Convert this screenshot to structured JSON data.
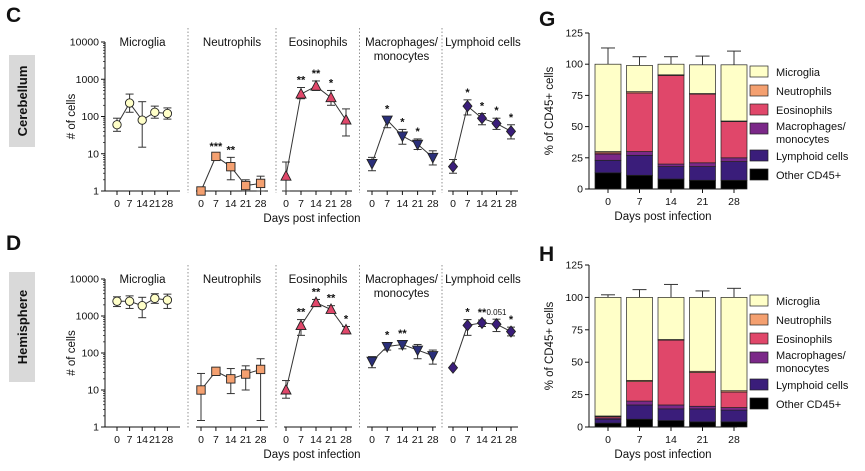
{
  "colors": {
    "microglia": "#FFFFC8",
    "neutrophils": "#F4A070",
    "eosinophils": "#E0476A",
    "macrophages": "#7B2888",
    "lymphoid": "#3A1D7A",
    "other": "#000000",
    "side_box": "#D9D9D9"
  },
  "panels": {
    "C": "C",
    "D": "D",
    "G": "G",
    "H": "H"
  },
  "side_labels": {
    "cerebellum": "Cerebellum",
    "hemisphere": "Hemisphere"
  },
  "chart_data": [
    {
      "id": "C",
      "type": "line",
      "region": "Cerebellum",
      "yscale": "log",
      "ylim": [
        1,
        10000
      ],
      "ylabel": "# of cells",
      "xlabel": "Days post infection",
      "yticks": [
        "1",
        "10",
        "100",
        "1000",
        "10000"
      ],
      "x": [
        "0",
        "7",
        "14",
        "21",
        "28"
      ],
      "groups": [
        {
          "name": "Microglia",
          "marker": "circle",
          "color": "#FFFFC8",
          "values": [
            60,
            230,
            80,
            130,
            120
          ],
          "lo": [
            40,
            130,
            15,
            90,
            85
          ],
          "hi": [
            90,
            400,
            250,
            190,
            170
          ],
          "stars": [
            "",
            "",
            "",
            "",
            ""
          ]
        },
        {
          "name": "Neutrophils",
          "marker": "square",
          "color": "#F4A070",
          "values": [
            1,
            8.5,
            4.5,
            1.4,
            1.6
          ],
          "lo": [
            1,
            7,
            2,
            1,
            1
          ],
          "hi": [
            1,
            10,
            8,
            2,
            2.5
          ],
          "stars": [
            "",
            "***",
            "**",
            "",
            ""
          ]
        },
        {
          "name": "Eosinophils",
          "marker": "triangle-up",
          "color": "#E0476A",
          "values": [
            2.5,
            400,
            650,
            320,
            80
          ],
          "lo": [
            1,
            300,
            500,
            200,
            30
          ],
          "hi": [
            6,
            600,
            900,
            500,
            160
          ],
          "stars": [
            "",
            "**",
            "**",
            "*",
            ""
          ]
        },
        {
          "name": "Macrophages/ monocytes",
          "marker": "triangle-down",
          "color": "#2A2F7A",
          "values": [
            5.5,
            80,
            30,
            18,
            8
          ],
          "lo": [
            3.5,
            50,
            18,
            13,
            5
          ],
          "hi": [
            8,
            100,
            45,
            25,
            12
          ],
          "stars": [
            "",
            "*",
            "*",
            "*",
            ""
          ]
        },
        {
          "name": "Lymphoid cells",
          "marker": "diamond",
          "color": "#3A1D7A",
          "values": [
            4.5,
            190,
            90,
            65,
            40
          ],
          "lo": [
            3,
            110,
            60,
            45,
            25
          ],
          "hi": [
            7,
            280,
            120,
            90,
            60
          ],
          "stars": [
            "",
            "*",
            "*",
            "*",
            "*"
          ]
        }
      ]
    },
    {
      "id": "D",
      "type": "line",
      "region": "Hemisphere",
      "yscale": "log",
      "ylim": [
        1,
        10000
      ],
      "ylabel": "# of cells",
      "xlabel": "Days post infection",
      "yticks": [
        "1",
        "10",
        "100",
        "1000",
        "10000"
      ],
      "x": [
        "0",
        "7",
        "14",
        "21",
        "28"
      ],
      "groups": [
        {
          "name": "Microglia",
          "marker": "circle",
          "color": "#FFFFC8",
          "values": [
            2500,
            2500,
            1900,
            3000,
            2700
          ],
          "lo": [
            1800,
            1600,
            900,
            2200,
            1600
          ],
          "hi": [
            3300,
            3500,
            3200,
            4000,
            3900
          ],
          "stars": [
            "",
            "",
            "",
            "",
            ""
          ]
        },
        {
          "name": "Neutrophils",
          "marker": "square",
          "color": "#F4A070",
          "values": [
            10,
            32,
            20,
            27,
            36
          ],
          "lo": [
            1.5,
            25,
            8,
            10,
            1.5
          ],
          "hi": [
            28,
            40,
            38,
            45,
            70
          ],
          "stars": [
            "",
            "",
            "",
            "",
            ""
          ]
        },
        {
          "name": "Eosinophils",
          "marker": "triangle-up",
          "color": "#E0476A",
          "values": [
            10,
            550,
            2300,
            1500,
            420
          ],
          "lo": [
            6,
            300,
            1900,
            1200,
            330
          ],
          "hi": [
            18,
            800,
            2800,
            1900,
            520
          ],
          "stars": [
            "",
            "**",
            "**",
            "**",
            "*"
          ]
        },
        {
          "name": "Macrophages/ monocytes",
          "marker": "triangle-down",
          "color": "#2A2F7A",
          "values": [
            60,
            150,
            170,
            120,
            85
          ],
          "lo": [
            40,
            120,
            130,
            70,
            50
          ],
          "hi": [
            80,
            190,
            210,
            170,
            120
          ],
          "stars": [
            "",
            "*",
            "**",
            "",
            ""
          ]
        },
        {
          "name": "Lymphoid cells",
          "marker": "diamond",
          "color": "#3A1D7A",
          "values": [
            40,
            560,
            650,
            600,
            380
          ],
          "lo": [
            40,
            300,
            520,
            380,
            290
          ],
          "hi": [
            40,
            800,
            780,
            820,
            500
          ],
          "stars": [
            "",
            "*",
            "**",
            "0.051",
            "*"
          ]
        }
      ]
    },
    {
      "id": "G",
      "type": "bar",
      "stacked": true,
      "ylabel": "% of CD45+ cells",
      "xlabel": "Days post infection",
      "ylim": [
        0,
        125
      ],
      "yticks": [
        "0",
        "25",
        "50",
        "75",
        "100",
        "125"
      ],
      "categories": [
        "0",
        "7",
        "14",
        "21",
        "28"
      ],
      "series": [
        {
          "name": "Other CD45+",
          "color": "#000000",
          "values": [
            13,
            11,
            8,
            7,
            7
          ],
          "err": [
            0,
            0,
            0,
            0,
            0
          ]
        },
        {
          "name": "Lymphoid cells",
          "color": "#3A1D7A",
          "values": [
            10,
            16,
            10,
            11,
            15
          ],
          "err": [
            0,
            0,
            0,
            0,
            0
          ]
        },
        {
          "name": "Macrophages/ monocytes",
          "color": "#7B2888",
          "values": [
            5,
            3,
            2,
            3,
            3
          ],
          "err": [
            0,
            0,
            0,
            0,
            0
          ]
        },
        {
          "name": "Eosinophils",
          "color": "#E0476A",
          "values": [
            1,
            47,
            71,
            55,
            29
          ],
          "err": [
            0,
            5,
            0,
            7,
            12
          ]
        },
        {
          "name": "Neutrophils",
          "color": "#F4A070",
          "values": [
            1,
            1,
            0.5,
            0.5,
            0.5
          ],
          "err": [
            0,
            0,
            0,
            0,
            0
          ]
        },
        {
          "name": "Microglia",
          "color": "#FFFFC8",
          "values": [
            70,
            21,
            8.5,
            23,
            45
          ],
          "err": [
            13,
            7,
            6,
            7,
            11
          ]
        }
      ],
      "legend": [
        "Microglia",
        "Neutrophils",
        "Eosinophils",
        "Macrophages/ monocytes",
        "Lymphoid cells",
        "Other CD45+"
      ]
    },
    {
      "id": "H",
      "type": "bar",
      "stacked": true,
      "ylabel": "% of CD45+ cells",
      "xlabel": "Days post infection",
      "ylim": [
        0,
        125
      ],
      "yticks": [
        "0",
        "25",
        "50",
        "75",
        "100",
        "125"
      ],
      "categories": [
        "0",
        "7",
        "14",
        "21",
        "28"
      ],
      "series": [
        {
          "name": "Other CD45+",
          "color": "#000000",
          "values": [
            3,
            6,
            5,
            4,
            4
          ],
          "err": [
            0,
            0,
            0,
            0,
            0
          ]
        },
        {
          "name": "Lymphoid cells",
          "color": "#3A1D7A",
          "values": [
            3,
            11,
            9,
            10,
            9
          ],
          "err": [
            0,
            0,
            0,
            0,
            0
          ]
        },
        {
          "name": "Macrophages/ monocytes",
          "color": "#7B2888",
          "values": [
            1,
            3,
            3,
            2,
            2
          ],
          "err": [
            0,
            0,
            0,
            0,
            0
          ]
        },
        {
          "name": "Eosinophils",
          "color": "#E0476A",
          "values": [
            1,
            15,
            50,
            26,
            12
          ],
          "err": [
            0,
            3,
            8,
            5,
            5
          ]
        },
        {
          "name": "Neutrophils",
          "color": "#F4A070",
          "values": [
            0.5,
            1,
            0.5,
            1,
            1
          ],
          "err": [
            0,
            0,
            0,
            0,
            0
          ]
        },
        {
          "name": "Microglia",
          "color": "#FFFFC8",
          "values": [
            91.5,
            64,
            32.5,
            57,
            72
          ],
          "err": [
            2,
            6,
            10,
            5,
            7
          ]
        }
      ],
      "legend": [
        "Microglia",
        "Neutrophils",
        "Eosinophils",
        "Macrophages/ monocytes",
        "Lymphoid cells",
        "Other CD45+"
      ]
    }
  ]
}
